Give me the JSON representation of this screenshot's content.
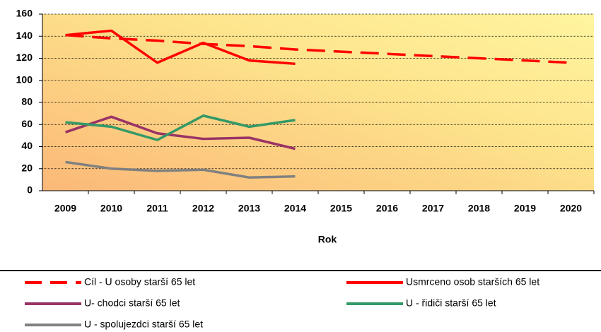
{
  "chart_data": {
    "type": "line",
    "x_label": "Rok",
    "categories": [
      "2009",
      "2010",
      "2011",
      "2012",
      "2013",
      "2014",
      "2015",
      "2016",
      "2017",
      "2018",
      "2019",
      "2020"
    ],
    "ylim": [
      0,
      160
    ],
    "yticks": [
      0,
      20,
      40,
      60,
      80,
      100,
      120,
      140,
      160
    ],
    "grid": true,
    "series": [
      {
        "name": "Cíl - U osoby starší 65 let",
        "color": "#ff0000",
        "dashed": true,
        "values": [
          141,
          138,
          136,
          133,
          131,
          128,
          126,
          124,
          122,
          120,
          118,
          116
        ]
      },
      {
        "name": "Usmrceno osob starších 65 let",
        "color": "#ff0000",
        "values": [
          141,
          145,
          116,
          134,
          118,
          115,
          null,
          null,
          null,
          null,
          null,
          null
        ]
      },
      {
        "name": "U- chodci starší 65 let",
        "color": "#993366",
        "values": [
          53,
          67,
          52,
          47,
          48,
          38,
          null,
          null,
          null,
          null,
          null,
          null
        ]
      },
      {
        "name": "U - řidiči starší 65 let",
        "color": "#339966",
        "values": [
          62,
          58,
          46,
          68,
          58,
          64,
          null,
          null,
          null,
          null,
          null,
          null
        ]
      },
      {
        "name": "U - spolujezdci starší 65 let",
        "color": "#808080",
        "values": [
          26,
          20,
          18,
          19,
          12,
          13,
          null,
          null,
          null,
          null,
          null,
          null
        ]
      }
    ]
  }
}
